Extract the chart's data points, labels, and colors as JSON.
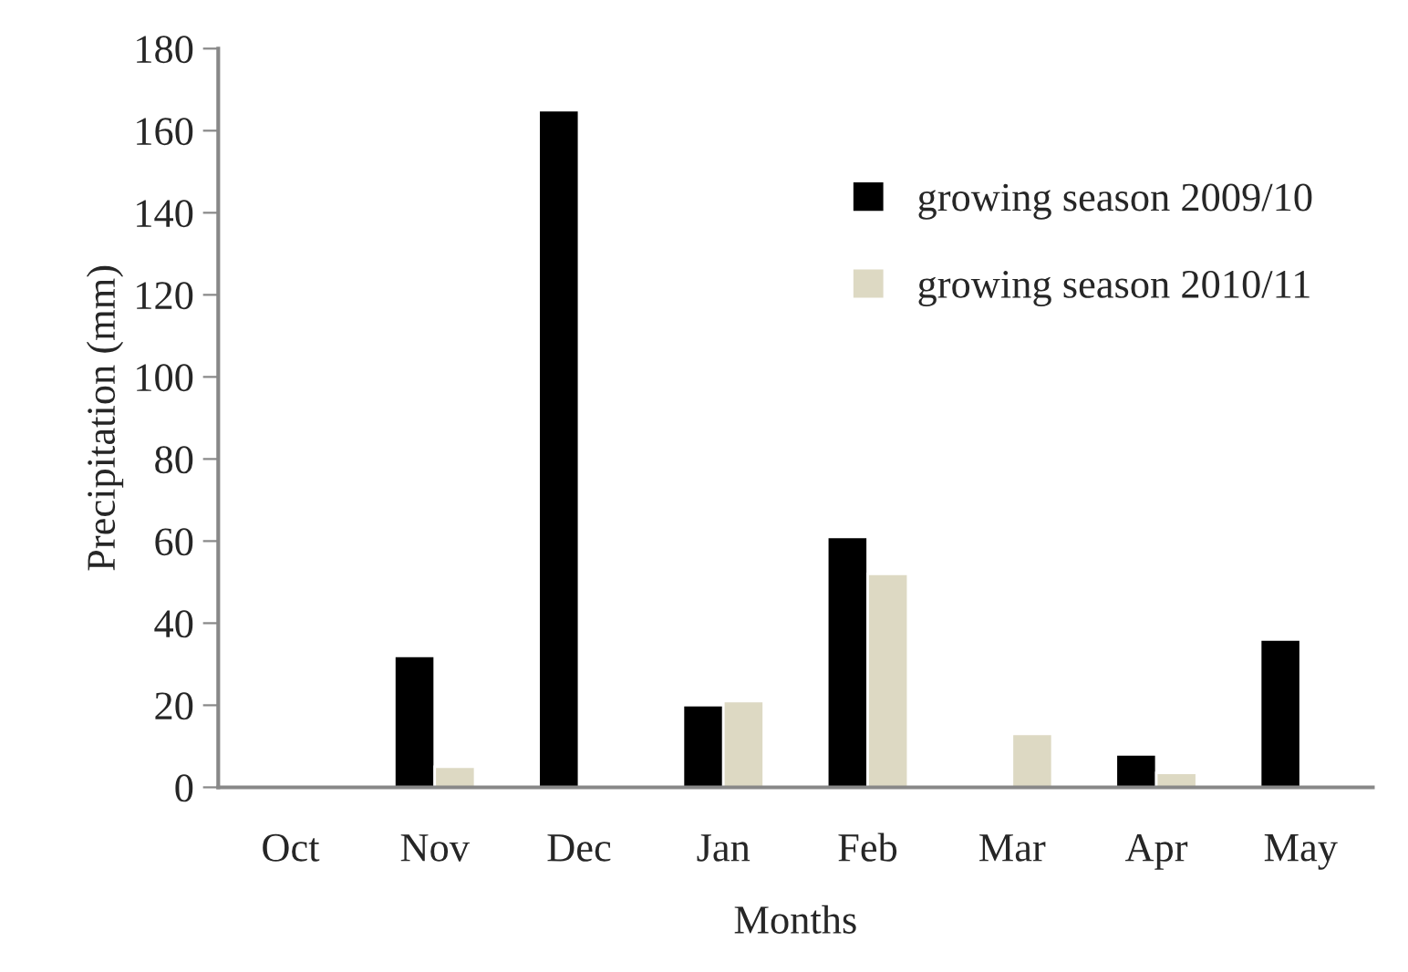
{
  "chart_data": {
    "type": "bar",
    "xlabel": "Months",
    "ylabel": "Precipitation (mm)",
    "categories": [
      "Oct",
      "Nov",
      "Dec",
      "Jan",
      "Feb",
      "Mar",
      "Apr",
      "May"
    ],
    "series": [
      {
        "name": "growing season 2009/10",
        "color": "#000000",
        "values": [
          null,
          32,
          165,
          20,
          61,
          null,
          8,
          36
        ]
      },
      {
        "name": "growing season 2010/11",
        "color": "#ddd9c3",
        "values": [
          null,
          5,
          null,
          21,
          52,
          13,
          3.5,
          null
        ]
      }
    ],
    "ylim": [
      0,
      180
    ],
    "yticks": [
      0,
      20,
      40,
      60,
      80,
      100,
      120,
      140,
      160,
      180
    ],
    "grid": false,
    "legend": "top right"
  }
}
